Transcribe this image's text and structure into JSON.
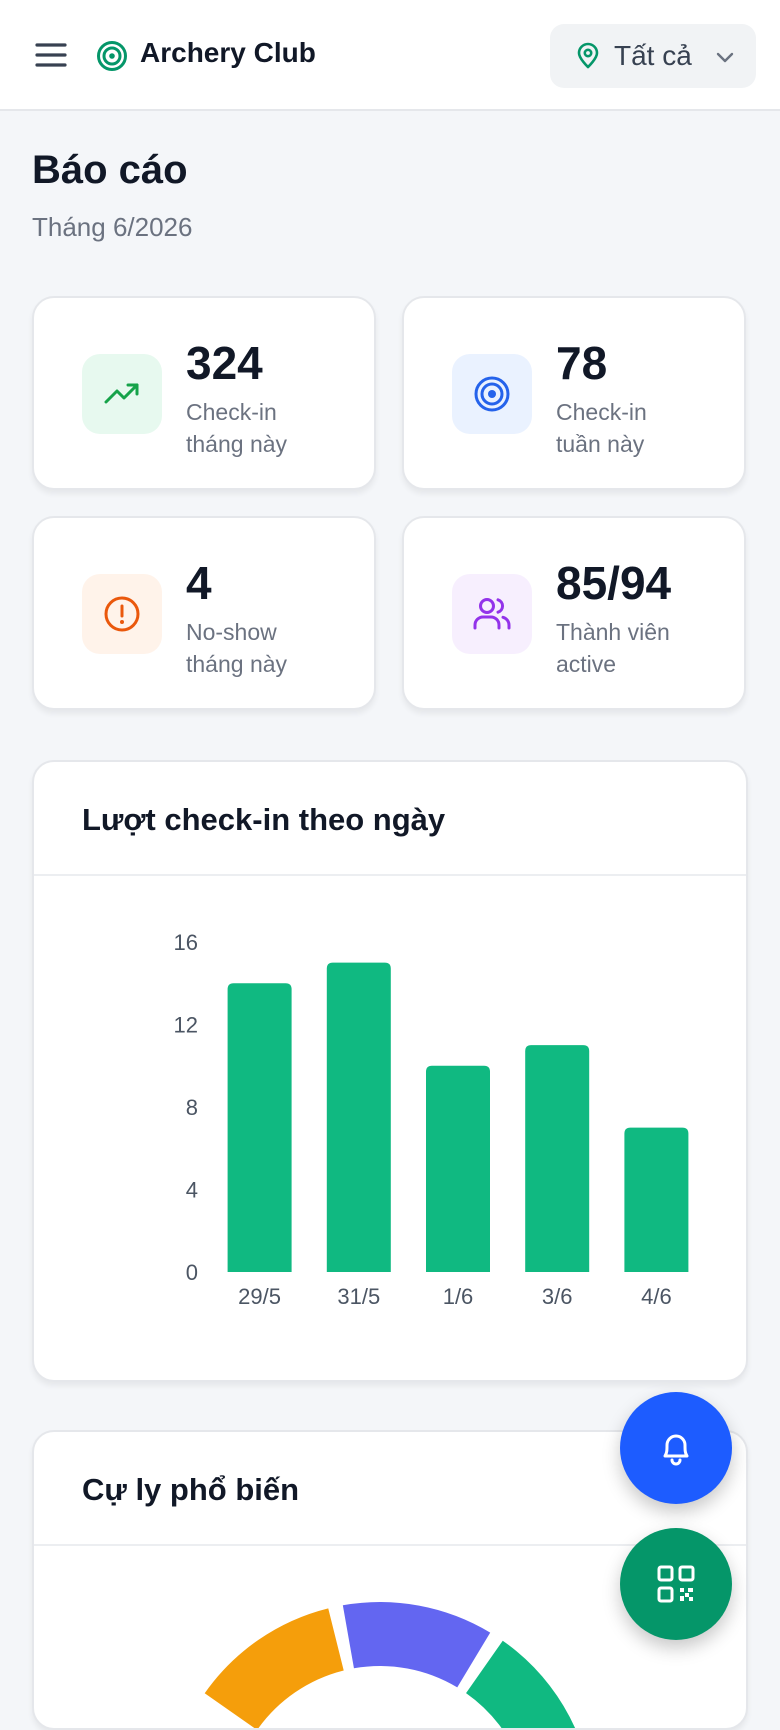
{
  "header": {
    "brand": "Archery Club",
    "location_value": "Tất cả"
  },
  "page": {
    "title": "Báo cáo",
    "subtitle": "Tháng 6/2026"
  },
  "stats": [
    {
      "value": "324",
      "label_line1": "Check-in",
      "label_line2": "tháng này",
      "icon": "trending-up-icon",
      "color": "#16a34a",
      "bg": "#e7f9ef"
    },
    {
      "value": "78",
      "label_line1": "Check-in",
      "label_line2": "tuần này",
      "icon": "target-icon",
      "color": "#2563eb",
      "bg": "#eaf2ff"
    },
    {
      "value": "4",
      "label_line1": "No-show",
      "label_line2": "tháng này",
      "icon": "alert-circle-icon",
      "color": "#ea580c",
      "bg": "#fff3ea"
    },
    {
      "value": "85/94",
      "label_line1": "Thành viên",
      "label_line2": "active",
      "icon": "users-icon",
      "color": "#9333ea",
      "bg": "#f7effe"
    }
  ],
  "checkin_chart": {
    "title": "Lượt check-in theo ngày"
  },
  "distance_chart": {
    "title": "Cự ly phổ biến"
  },
  "chart_data": [
    {
      "type": "bar",
      "title": "Lượt check-in theo ngày",
      "categories": [
        "29/5",
        "31/5",
        "1/6",
        "3/6",
        "4/6"
      ],
      "values": [
        14,
        15,
        10,
        11,
        7
      ],
      "ylim": [
        0,
        16
      ],
      "yticks": [
        0,
        4,
        8,
        12,
        16
      ],
      "color": "#10b981",
      "grid": false
    },
    {
      "type": "pie",
      "title": "Cự ly phổ biến",
      "colors": [
        "#f59e0b",
        "#6366f1",
        "#10b981"
      ],
      "partially_visible": true
    }
  ],
  "colors": {
    "brand": "#059669",
    "bar": "#10b981",
    "bell_fab": "#1d5cff",
    "qr_fab": "#059669"
  },
  "fabs": {
    "bell_icon": "bell-icon",
    "qr_icon": "qr-code-icon"
  }
}
